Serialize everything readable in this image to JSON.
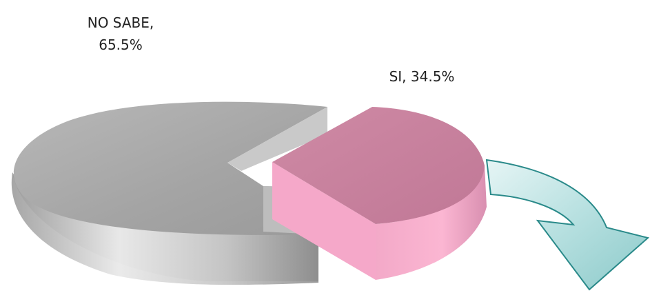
{
  "chart_data": {
    "type": "pie",
    "style": "3d-exploded",
    "title": "",
    "slices": [
      {
        "name": "NO SABE",
        "value": 65.5,
        "label_line1": "NO SABE,",
        "label_line2": "65.5%",
        "color": "#a6a6a6"
      },
      {
        "name": "SI",
        "value": 34.5,
        "label": "SI, 34.5%",
        "color": "#d98fb0"
      }
    ],
    "annotation": {
      "shape": "curved-arrow",
      "direction": "down-right",
      "color": "#9fd3d3",
      "stroke": "#2a8a8a"
    }
  }
}
